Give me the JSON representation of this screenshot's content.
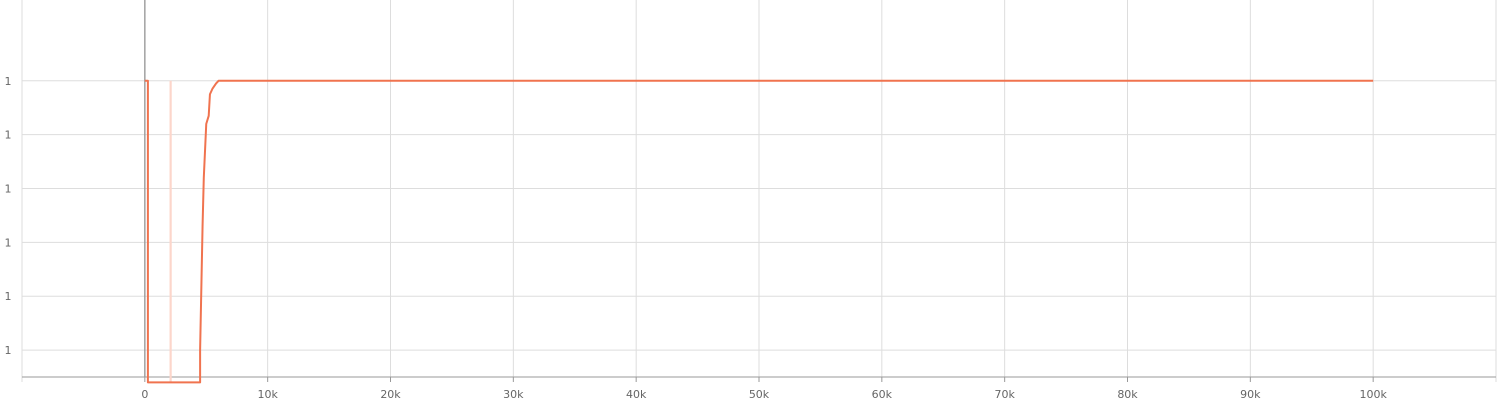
{
  "chart_data": {
    "type": "line",
    "title": "",
    "xlabel": "",
    "ylabel": "",
    "xlim": [
      -10000,
      110000
    ],
    "ylim": [
      -0.5,
      6.5
    ],
    "grid": true,
    "x_ticks": [
      {
        "value": 0,
        "label": "0"
      },
      {
        "value": 10000,
        "label": "10k"
      },
      {
        "value": 20000,
        "label": "20k"
      },
      {
        "value": 30000,
        "label": "30k"
      },
      {
        "value": 40000,
        "label": "40k"
      },
      {
        "value": 50000,
        "label": "50k"
      },
      {
        "value": 60000,
        "label": "60k"
      },
      {
        "value": 70000,
        "label": "70k"
      },
      {
        "value": 80000,
        "label": "80k"
      },
      {
        "value": 90000,
        "label": "90k"
      },
      {
        "value": 100000,
        "label": "100k"
      }
    ],
    "y_ticks": [
      {
        "value": 0,
        "label": "1"
      },
      {
        "value": 1,
        "label": "1"
      },
      {
        "value": 2,
        "label": "1"
      },
      {
        "value": 3,
        "label": "1"
      },
      {
        "value": 4,
        "label": "1"
      },
      {
        "value": 5,
        "label": "1"
      }
    ],
    "series": [
      {
        "color": "#f0734f",
        "x": [
          0,
          250,
          250,
          4500,
          4500,
          4700,
          4800,
          5000,
          5200,
          5300,
          5500,
          5800,
          6000,
          100000
        ],
        "y": [
          5,
          5,
          -0.6,
          -0.6,
          0,
          2.3,
          3.2,
          4.2,
          4.35,
          4.75,
          4.85,
          4.95,
          5,
          5
        ]
      },
      {
        "color": "#fcd6cb",
        "x": [
          2100,
          2100
        ],
        "y": [
          -0.6,
          5
        ]
      }
    ]
  }
}
